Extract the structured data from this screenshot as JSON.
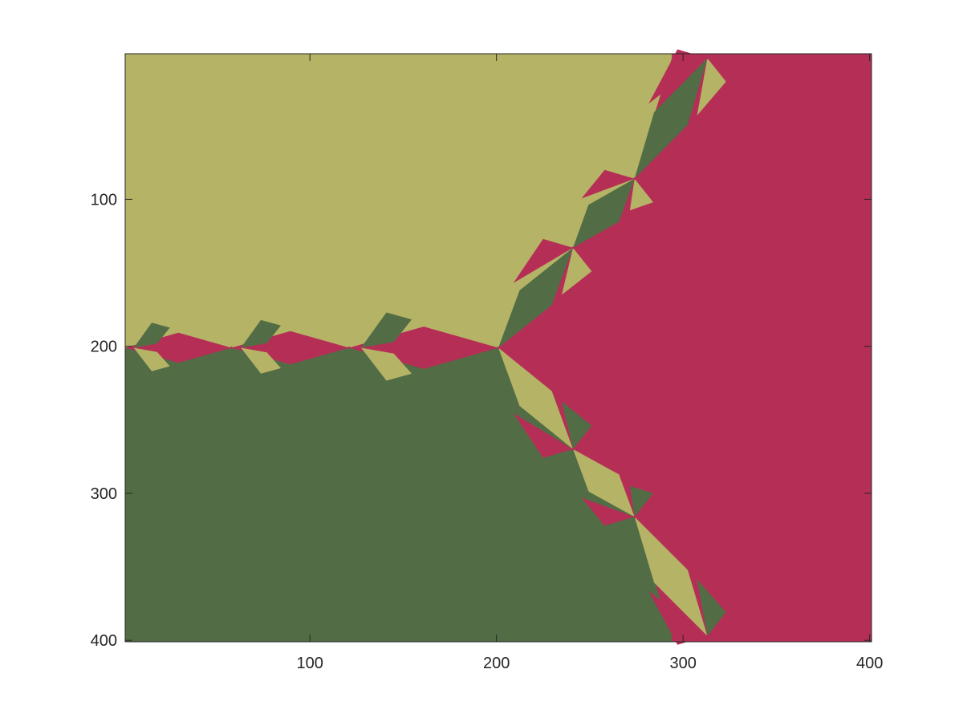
{
  "chart_data": {
    "type": "heatmap",
    "description_kind": "basin-of-attraction image (three root basins)",
    "xlim": [
      1,
      401
    ],
    "ylim": [
      401,
      1
    ],
    "y_axis_reversed": true,
    "grid": false,
    "legend": "none",
    "x_ticks": [
      {
        "value": 100,
        "label": "100"
      },
      {
        "value": 200,
        "label": "200"
      },
      {
        "value": 300,
        "label": "300"
      },
      {
        "value": 400,
        "label": "400"
      }
    ],
    "y_ticks": [
      {
        "value": 100,
        "label": "100"
      },
      {
        "value": 200,
        "label": "200"
      },
      {
        "value": 300,
        "label": "300"
      },
      {
        "value": 400,
        "label": "400"
      }
    ],
    "colors": {
      "basin_a": "#b5b366",
      "basin_b": "#b52e56",
      "basin_c": "#526d45",
      "axis": "#262626",
      "background": "#ffffff"
    },
    "regions": [
      {
        "name": "basin_a",
        "color": "#b5b366",
        "area": "upper-left"
      },
      {
        "name": "basin_b",
        "color": "#b52e56",
        "area": "right"
      },
      {
        "name": "basin_c",
        "color": "#526d45",
        "area": "lower-left"
      }
    ],
    "junction_points": [
      {
        "x": 201,
        "y": 201
      },
      {
        "x": 121,
        "y": 201
      },
      {
        "x": 58,
        "y": 201
      },
      {
        "x": 241,
        "y": 133
      },
      {
        "x": 241,
        "y": 270
      },
      {
        "x": 274,
        "y": 86
      },
      {
        "x": 274,
        "y": 316
      },
      {
        "x": 313,
        "y": 4
      },
      {
        "x": 313,
        "y": 397
      }
    ]
  }
}
